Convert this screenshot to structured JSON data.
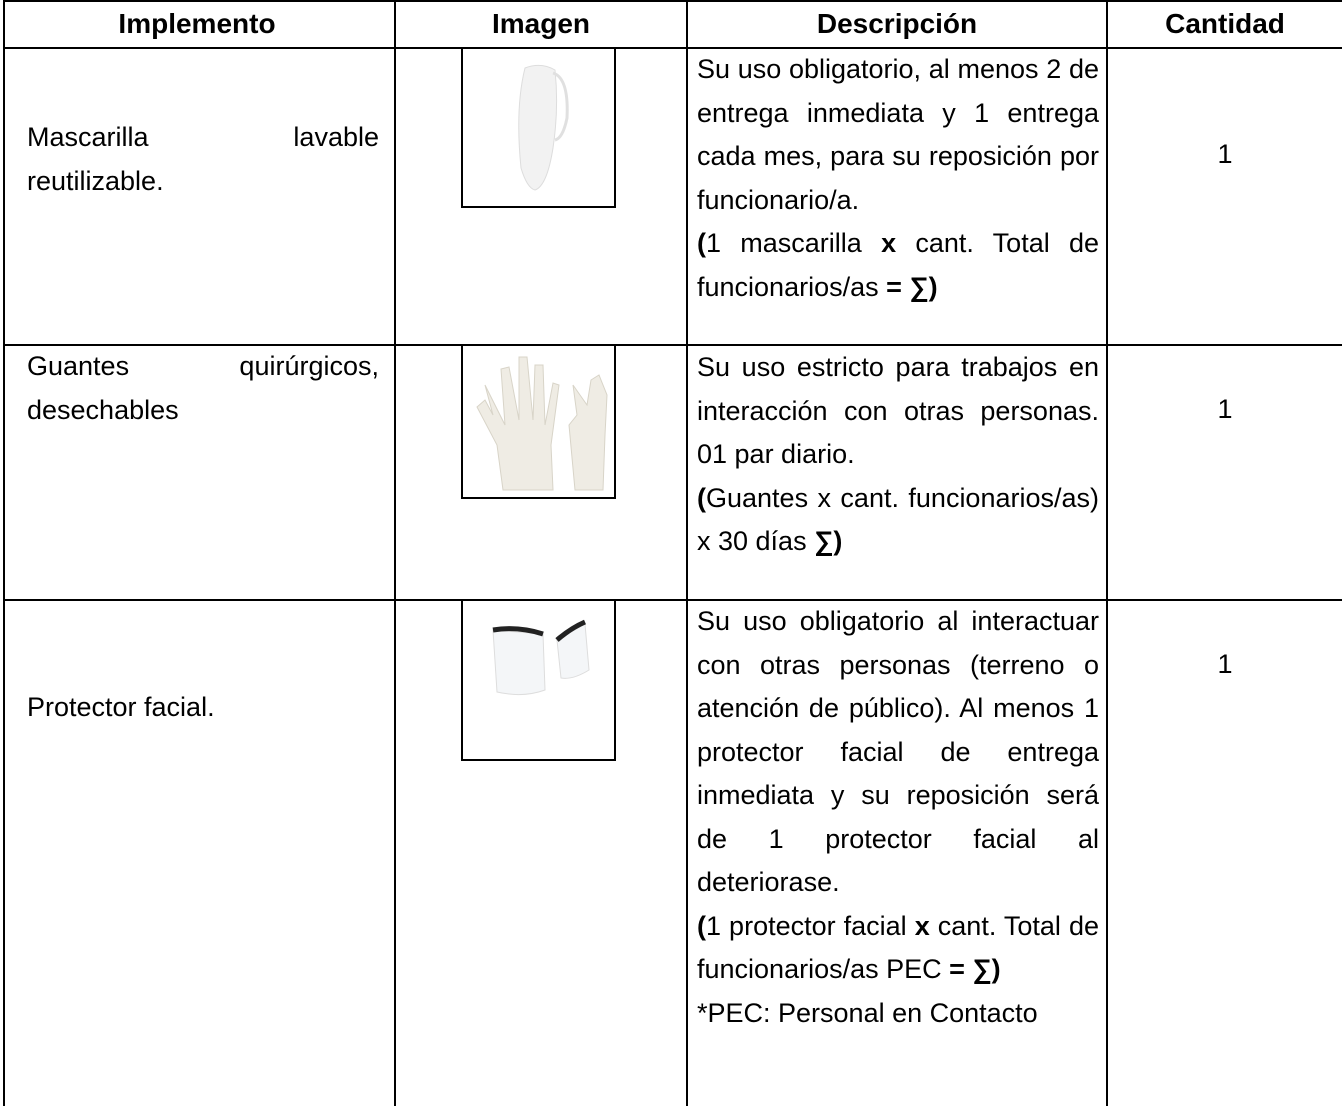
{
  "table": {
    "headers": [
      "Implemento",
      "Imagen",
      "Descripción",
      "Cantidad"
    ],
    "rows": [
      {
        "implemento": "Mascarilla lavable reutilizable.",
        "descripcion": [
          [
            {
              "text": "Su uso obligatorio, al menos 2 de entrega inmediata y 1 entrega cada mes, para su reposición por funcionario/a.",
              "bold": false
            }
          ],
          [
            {
              "text": "(",
              "bold": true
            },
            {
              "text": "1 mascarilla ",
              "bold": false
            },
            {
              "text": "x",
              "bold": true
            },
            {
              "text": " cant. Total de funcionarios/as ",
              "bold": false
            },
            {
              "text": "= ∑)",
              "bold": true
            }
          ]
        ],
        "cantidad": 1
      },
      {
        "implemento": "Guantes quirúrgicos, desechables",
        "descripcion": [
          [
            {
              "text": "Su uso estricto para trabajos en interacción con otras personas. 01 par diario.",
              "bold": false
            }
          ],
          [
            {
              "text": "(",
              "bold": true
            },
            {
              "text": "Guantes x cant. funcionarios/as) x 30 días ",
              "bold": false
            },
            {
              "text": "∑)",
              "bold": true
            }
          ]
        ],
        "cantidad": 1
      },
      {
        "implemento": "Protector facial.",
        "descripcion": [
          [
            {
              "text": "Su uso obligatorio al interactuar con otras personas (terreno o atención de público). Al menos 1 protector facial de entrega inmediata y su reposición será de 1 protector facial al deteriorase.",
              "bold": false
            }
          ],
          [
            {
              "text": "(",
              "bold": true
            },
            {
              "text": "1 protector facial ",
              "bold": false
            },
            {
              "text": "x",
              "bold": true
            },
            {
              "text": " cant. Total de funcionarios/as PEC ",
              "bold": false
            },
            {
              "text": "= ∑)",
              "bold": true
            }
          ],
          [
            {
              "text": "*PEC: Personal en Contacto",
              "bold": false
            }
          ]
        ],
        "cantidad": 1
      }
    ]
  }
}
